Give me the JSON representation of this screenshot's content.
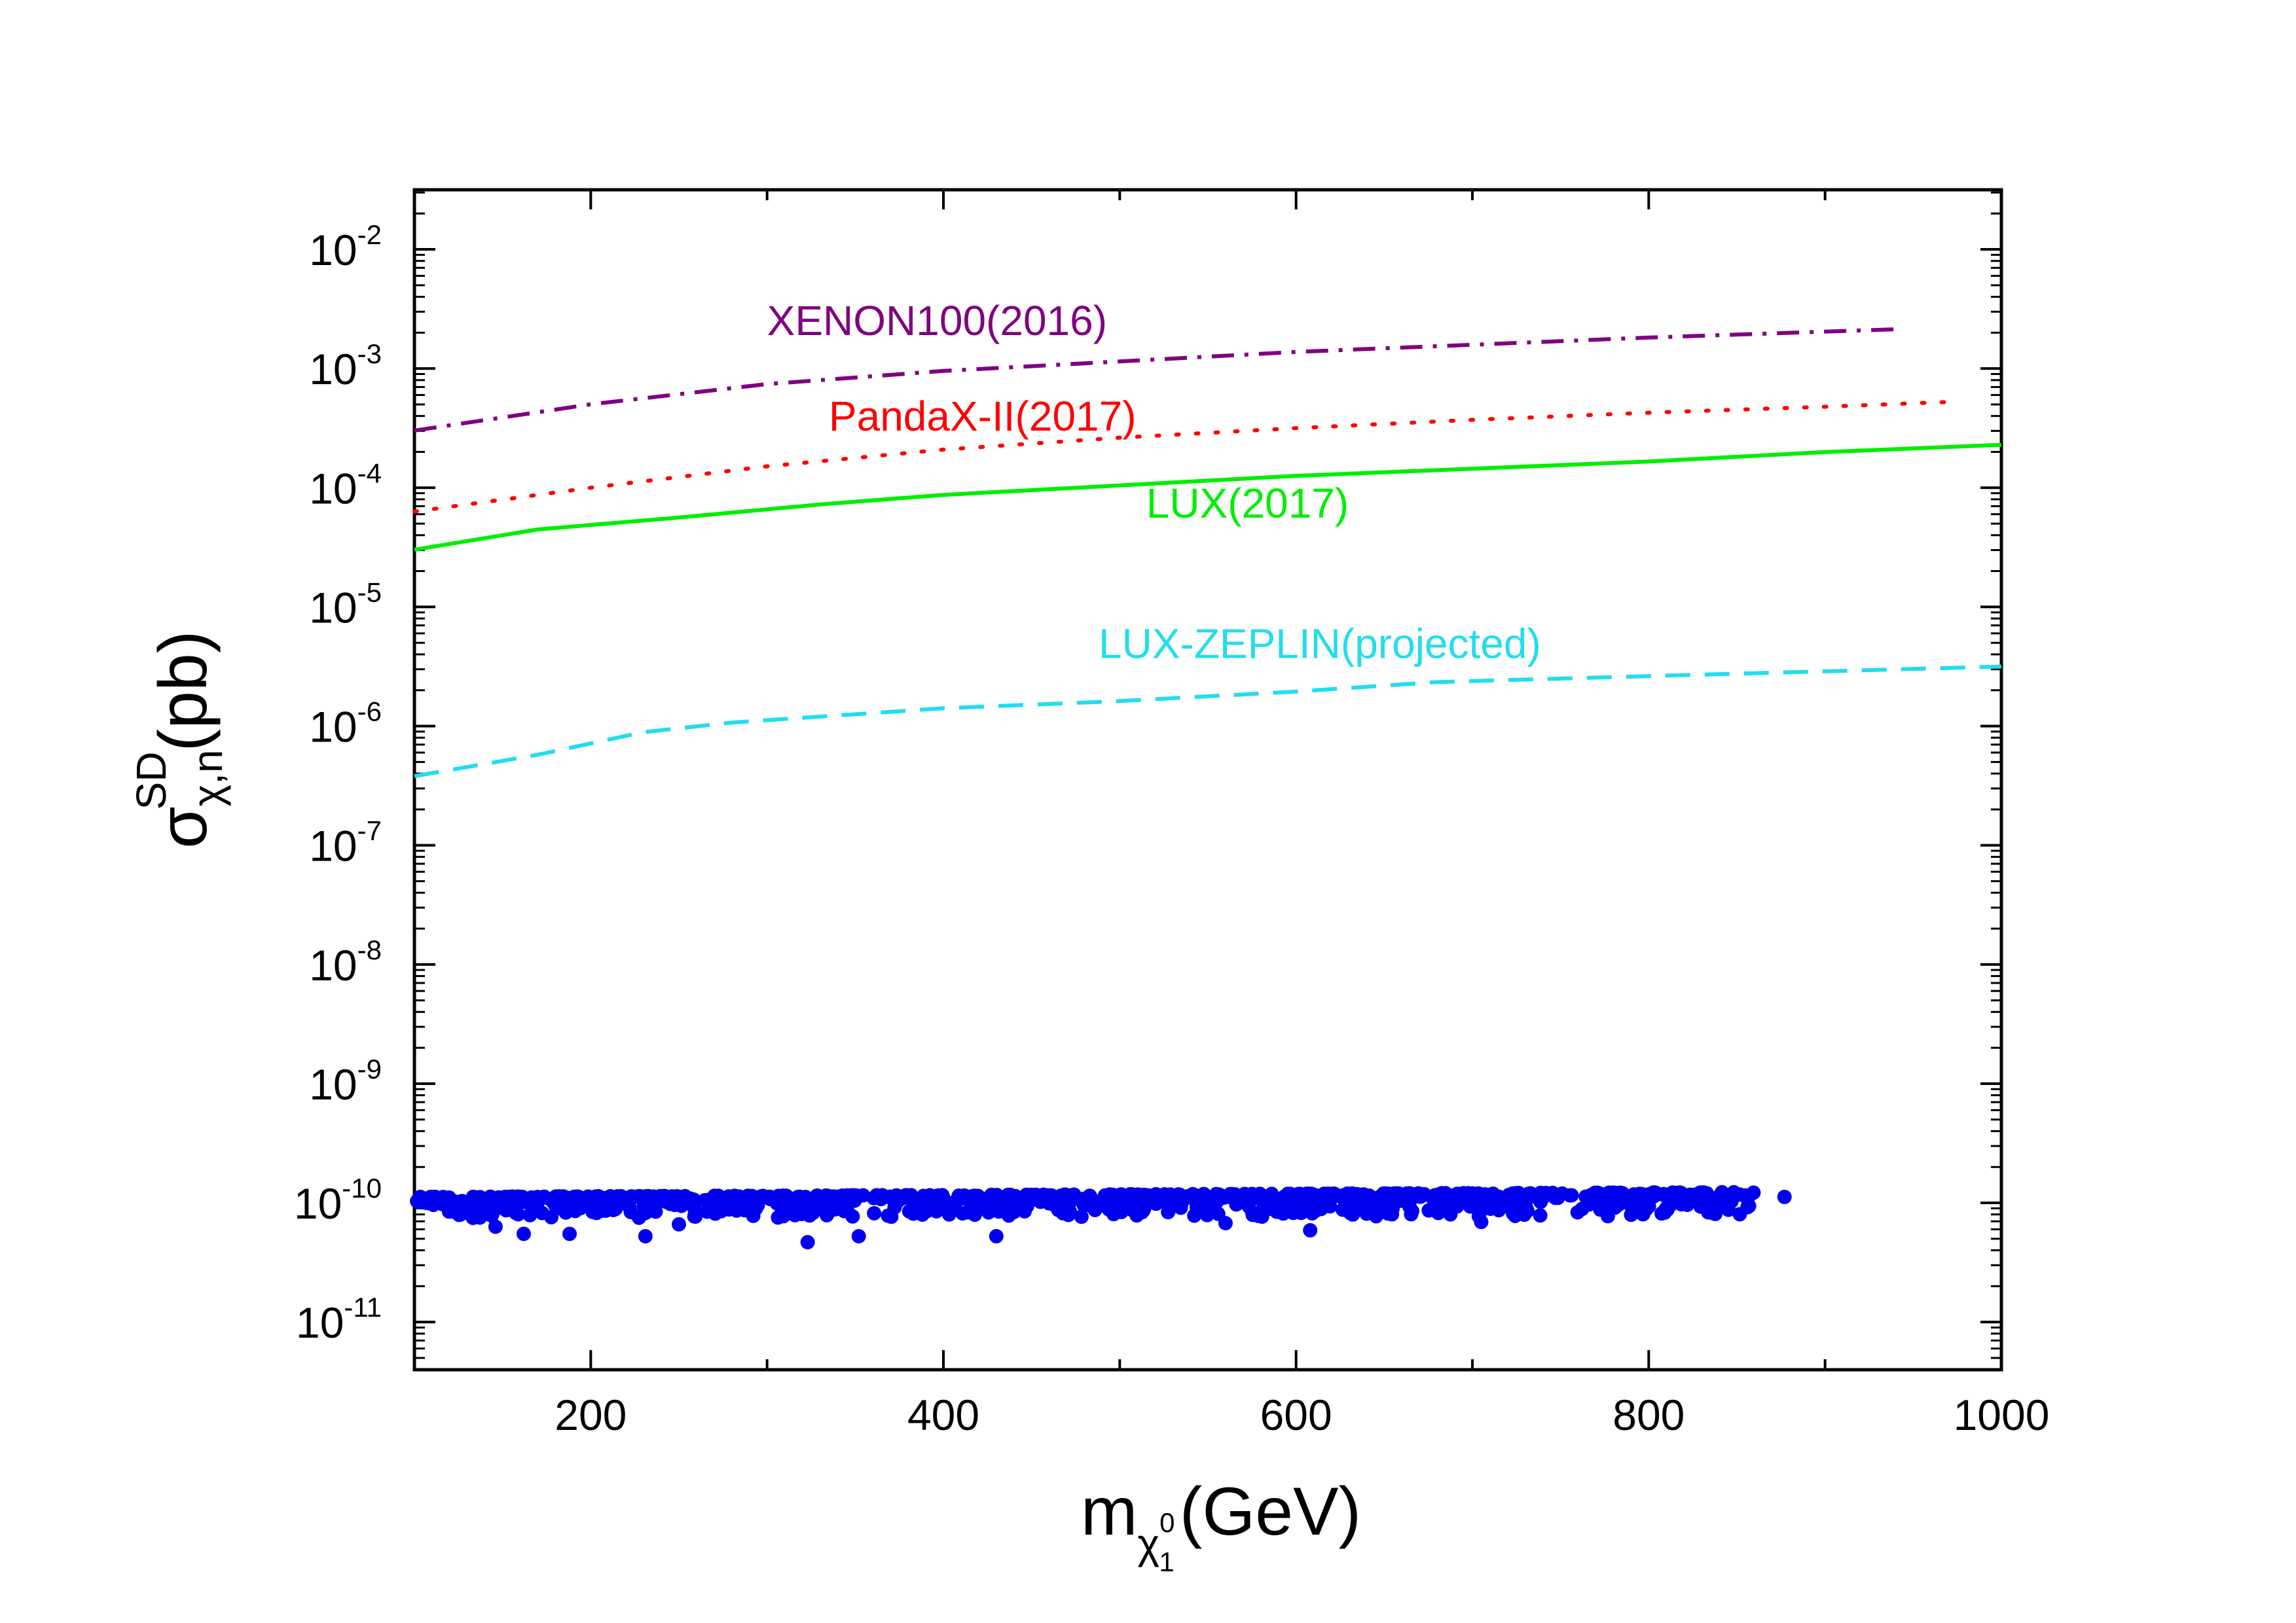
{
  "chart_data": {
    "type": "scatter",
    "title": "",
    "xlabel": {
      "base": "m",
      "sub": "χ",
      "subsub": "1",
      "subsup": "0",
      "unit": "(GeV)"
    },
    "ylabel": {
      "base": "σ",
      "sup": "SD",
      "sub": "χ,n",
      "unit": "(pb)"
    },
    "xlim": [
      100,
      1000
    ],
    "ylim_log10": [
      -11.4,
      -1.5
    ],
    "yscale": "log",
    "grid": false,
    "x_ticks": [
      {
        "value": 200,
        "label": "200"
      },
      {
        "value": 400,
        "label": "400"
      },
      {
        "value": 600,
        "label": "600"
      },
      {
        "value": 800,
        "label": "800"
      },
      {
        "value": 1000,
        "label": "1000"
      }
    ],
    "x_minor_ticks": [
      100,
      300,
      500,
      700,
      900
    ],
    "y_ticks": [
      {
        "exp": -2,
        "base": "10",
        "sup": "-2"
      },
      {
        "exp": -3,
        "base": "10",
        "sup": "-3"
      },
      {
        "exp": -4,
        "base": "10",
        "sup": "-4"
      },
      {
        "exp": -5,
        "base": "10",
        "sup": "-5"
      },
      {
        "exp": -6,
        "base": "10",
        "sup": "-6"
      },
      {
        "exp": -7,
        "base": "10",
        "sup": "-7"
      },
      {
        "exp": -8,
        "base": "10",
        "sup": "-8"
      },
      {
        "exp": -9,
        "base": "10",
        "sup": "-9"
      },
      {
        "exp": -10,
        "base": "10",
        "sup": "-10"
      },
      {
        "exp": -11,
        "base": "10",
        "sup": "-11"
      }
    ],
    "series": [
      {
        "name": "XENON100(2016)",
        "label": "XENON100(2016)",
        "color": "#800080",
        "style": "dashdot",
        "label_at": [
          300,
          -2.72
        ],
        "x": [
          100,
          150,
          200,
          300,
          400,
          500,
          600,
          700,
          800,
          940
        ],
        "log10_y": [
          -3.52,
          -3.41,
          -3.3,
          -3.13,
          -3.02,
          -2.94,
          -2.86,
          -2.8,
          -2.74,
          -2.67
        ]
      },
      {
        "name": "PandaX-II(2017)",
        "label": "PandaX-II(2017)",
        "color": "#ff0000",
        "style": "dotted",
        "label_at": [
          335,
          -3.52
        ],
        "x": [
          100,
          200,
          300,
          400,
          500,
          600,
          700,
          800,
          900,
          970
        ],
        "log10_y": [
          -4.2,
          -4.0,
          -3.82,
          -3.68,
          -3.58,
          -3.5,
          -3.43,
          -3.37,
          -3.32,
          -3.28
        ]
      },
      {
        "name": "LUX(2017)",
        "label": "LUX(2017)",
        "color": "#00ee00",
        "style": "solid",
        "label_at": [
          515,
          -4.25
        ],
        "x": [
          100,
          170,
          250,
          330,
          400,
          500,
          600,
          700,
          800,
          900,
          1000
        ],
        "log10_y": [
          -4.52,
          -4.35,
          -4.25,
          -4.14,
          -4.06,
          -3.98,
          -3.9,
          -3.84,
          -3.78,
          -3.7,
          -3.64
        ]
      },
      {
        "name": "LUX-ZEPLIN(projected)",
        "label": "LUX-ZEPLIN(projected)",
        "color": "#22ddee",
        "style": "dashed",
        "label_at": [
          488,
          -5.43
        ],
        "x": [
          100,
          170,
          230,
          280,
          330,
          400,
          500,
          600,
          680,
          800,
          900,
          1000
        ],
        "log10_y": [
          -6.42,
          -6.24,
          -6.05,
          -5.97,
          -5.92,
          -5.85,
          -5.79,
          -5.71,
          -5.63,
          -5.58,
          -5.54,
          -5.5
        ]
      }
    ],
    "scatter": {
      "name": "model points",
      "color": "#0000ee",
      "x_range": [
        100,
        880
      ],
      "log10_y_band": [
        -10.13,
        -9.95
      ],
      "outliers": [
        [
          146,
          -10.2
        ],
        [
          162,
          -10.26
        ],
        [
          188,
          -10.26
        ],
        [
          231,
          -10.28
        ],
        [
          250,
          -10.18
        ],
        [
          323,
          -10.33
        ],
        [
          352,
          -10.28
        ],
        [
          430,
          -10.28
        ],
        [
          560,
          -10.17
        ],
        [
          608,
          -10.23
        ],
        [
          705,
          -10.16
        ],
        [
          790,
          -10.1
        ],
        [
          877,
          -9.95
        ]
      ]
    }
  }
}
